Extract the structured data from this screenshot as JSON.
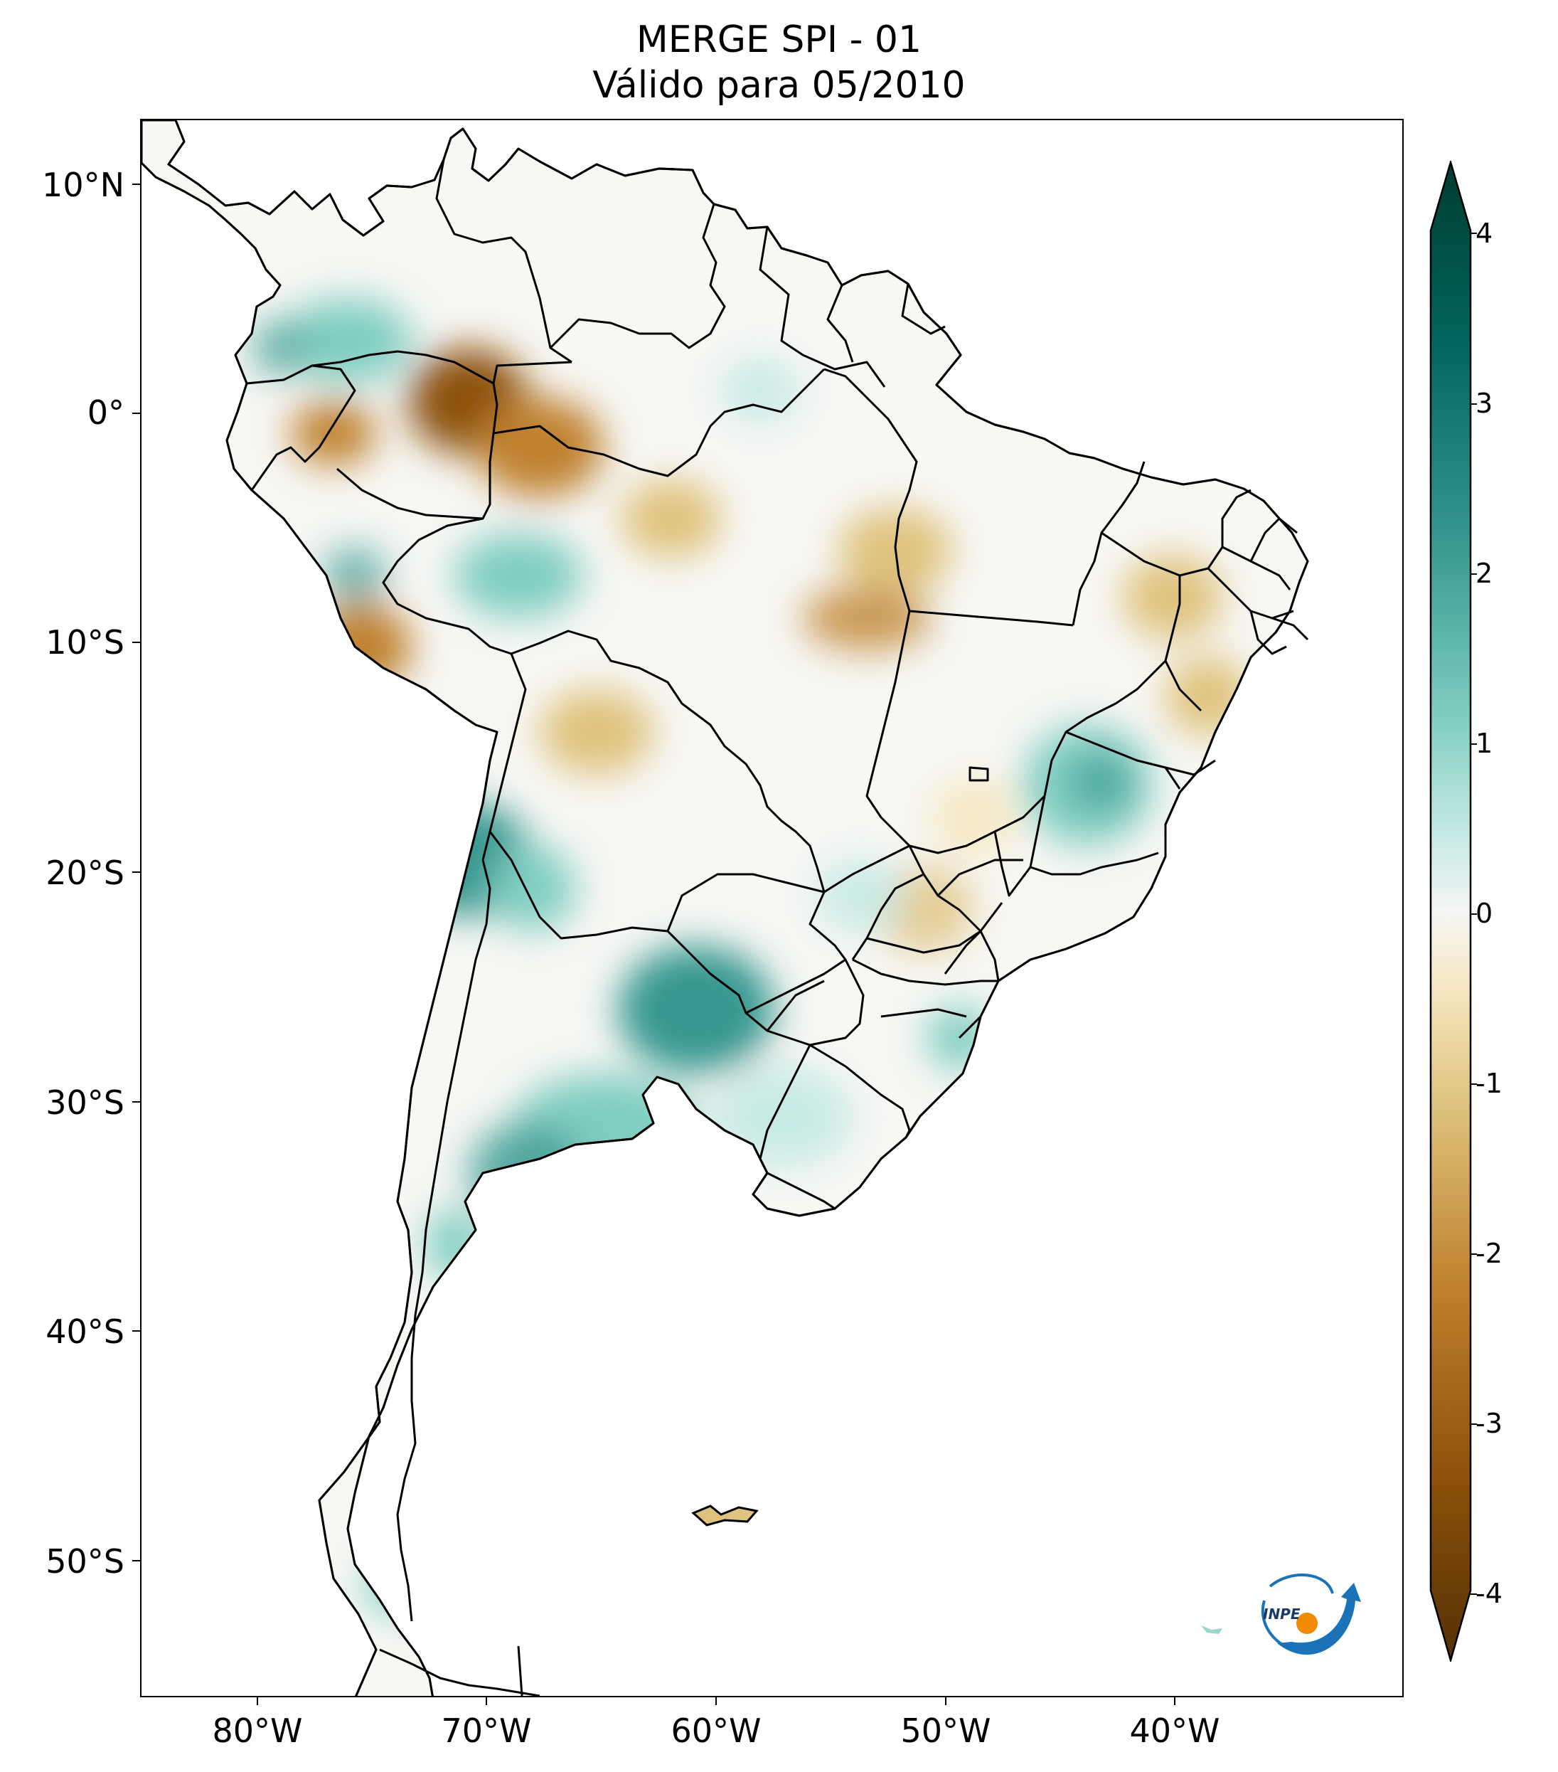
{
  "header": {
    "title_line1": "MERGE   SPI - 01",
    "title_line2": "Válido para 05/2010"
  },
  "axes": {
    "lat_labels": [
      "10°N",
      "0°",
      "10°S",
      "20°S",
      "30°S",
      "40°S",
      "50°S"
    ],
    "lon_labels": [
      "80°W",
      "70°W",
      "60°W",
      "50°W",
      "40°W"
    ]
  },
  "colorbar": {
    "min": -4,
    "max": 4,
    "tick_labels": [
      "4",
      "3",
      "2",
      "1",
      "0",
      "-1",
      "-2",
      "-3",
      "-4"
    ],
    "colors": {
      "dry_extreme": "#543005",
      "dry_strong": "#8c510a",
      "dry_moderate": "#bf812d",
      "dry_mild": "#dfc27d",
      "dry_light": "#f6e8c3",
      "neutral": "#ffffff",
      "wet_light": "#c7eae5",
      "wet_mild": "#80cdc1",
      "wet_moderate": "#35978f",
      "wet_strong": "#01665e",
      "wet_extreme": "#003c30"
    }
  },
  "logo": {
    "text": "INPE",
    "colors": {
      "arc": "#1a73b8",
      "dot": "#f08a00"
    }
  }
}
